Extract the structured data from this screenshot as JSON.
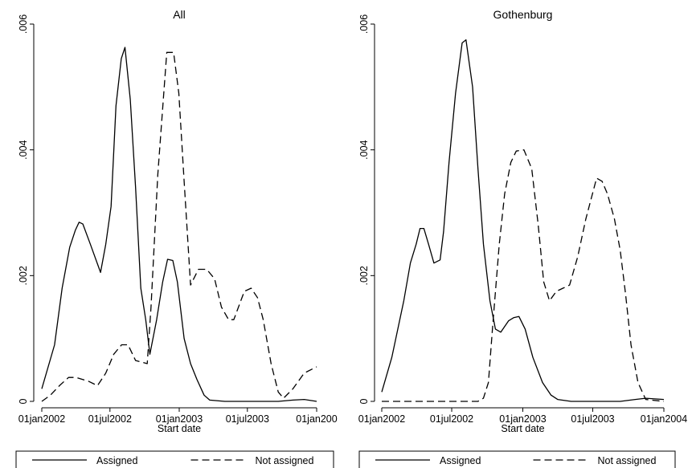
{
  "chart_data": [
    {
      "type": "line",
      "title": "All",
      "xlabel": "Start date",
      "ylabel": "",
      "xlim": [
        "2002-01-01",
        "2004-01-01"
      ],
      "ylim": [
        0,
        0.006
      ],
      "x_ticks": [
        "2002-01-01",
        "2002-07-01",
        "2003-01-01",
        "2003-07-01",
        "2004-01-01"
      ],
      "x_tick_labels": [
        "01jan2002",
        "01jul2002",
        "01jan2003",
        "01jul2003",
        "01jan200"
      ],
      "y_ticks": [
        0,
        0.002,
        0.004,
        0.006
      ],
      "y_tick_labels": [
        "0",
        ".002",
        ".004",
        ".006"
      ],
      "grid": false,
      "legend": "bottom",
      "series": [
        {
          "name": "Assigned",
          "style": "solid",
          "points": [
            [
              "2002-01-01",
              0.0002
            ],
            [
              "2002-02-04",
              0.0009
            ],
            [
              "2002-02-24",
              0.0018
            ],
            [
              "2002-03-16",
              0.00245
            ],
            [
              "2002-03-31",
              0.00272
            ],
            [
              "2002-04-10",
              0.00285
            ],
            [
              "2002-04-20",
              0.00282
            ],
            [
              "2002-05-10",
              0.0025
            ],
            [
              "2002-06-06",
              0.00205
            ],
            [
              "2002-06-20",
              0.0025
            ],
            [
              "2002-07-04",
              0.0031
            ],
            [
              "2002-07-17",
              0.0047
            ],
            [
              "2002-07-31",
              0.00545
            ],
            [
              "2002-08-10",
              0.00563
            ],
            [
              "2002-08-24",
              0.0048
            ],
            [
              "2002-09-07",
              0.0034
            ],
            [
              "2002-09-21",
              0.0018
            ],
            [
              "2002-10-04",
              0.0013
            ],
            [
              "2002-10-15",
              0.00075
            ],
            [
              "2002-11-02",
              0.0013
            ],
            [
              "2002-11-18",
              0.0019
            ],
            [
              "2002-12-01",
              0.00226
            ],
            [
              "2002-12-15",
              0.00224
            ],
            [
              "2002-12-27",
              0.0019
            ],
            [
              "2003-01-14",
              0.001
            ],
            [
              "2003-01-31",
              0.0006
            ],
            [
              "2003-02-17",
              0.00035
            ],
            [
              "2003-03-08",
              0.0001
            ],
            [
              "2003-03-23",
              2e-05
            ],
            [
              "2003-05-02",
              0.0
            ],
            [
              "2003-09-21",
              0.0
            ],
            [
              "2003-10-30",
              2e-05
            ],
            [
              "2003-11-29",
              3e-05
            ],
            [
              "2004-01-01",
              0.0
            ]
          ]
        },
        {
          "name": "Not assigned",
          "style": "dashed",
          "points": [
            [
              "2002-01-01",
              0.0
            ],
            [
              "2002-01-24",
              0.0001
            ],
            [
              "2002-02-17",
              0.00025
            ],
            [
              "2002-03-13",
              0.00038
            ],
            [
              "2002-04-02",
              0.00038
            ],
            [
              "2002-05-05",
              0.00032
            ],
            [
              "2002-05-29",
              0.00025
            ],
            [
              "2002-06-20",
              0.00045
            ],
            [
              "2002-07-11",
              0.00075
            ],
            [
              "2002-08-01",
              0.0009
            ],
            [
              "2002-08-18",
              0.0009
            ],
            [
              "2002-09-07",
              0.00065
            ],
            [
              "2002-10-08",
              0.0006
            ],
            [
              "2002-10-18",
              0.0015
            ],
            [
              "2002-11-05",
              0.0036
            ],
            [
              "2002-11-29",
              0.00555
            ],
            [
              "2002-12-17",
              0.00555
            ],
            [
              "2002-12-31",
              0.0049
            ],
            [
              "2003-01-14",
              0.0035
            ],
            [
              "2003-01-31",
              0.00185
            ],
            [
              "2003-02-21",
              0.0021
            ],
            [
              "2003-03-15",
              0.0021
            ],
            [
              "2003-04-05",
              0.00195
            ],
            [
              "2003-04-23",
              0.0015
            ],
            [
              "2003-05-12",
              0.0013
            ],
            [
              "2003-05-26",
              0.0013
            ],
            [
              "2003-06-23",
              0.00175
            ],
            [
              "2003-07-11",
              0.0018
            ],
            [
              "2003-07-28",
              0.00165
            ],
            [
              "2003-08-12",
              0.0013
            ],
            [
              "2003-09-02",
              0.0006
            ],
            [
              "2003-09-21",
              0.00015
            ],
            [
              "2003-10-05",
              5e-05
            ],
            [
              "2003-10-30",
              0.0002
            ],
            [
              "2003-11-29",
              0.00045
            ],
            [
              "2004-01-01",
              0.00055
            ]
          ]
        }
      ]
    },
    {
      "type": "line",
      "title": "Gothenburg",
      "xlabel": "Start date",
      "ylabel": "",
      "xlim": [
        "2002-01-01",
        "2004-01-01"
      ],
      "ylim": [
        0,
        0.006
      ],
      "x_ticks": [
        "2002-01-01",
        "2002-07-01",
        "2003-01-01",
        "2003-07-01",
        "2004-01-01"
      ],
      "x_tick_labels": [
        "01jan2002",
        "01jul2002",
        "01jan2003",
        "01jul2003",
        "01jan2004"
      ],
      "y_ticks": [
        0,
        0.002,
        0.004,
        0.006
      ],
      "y_tick_labels": [
        "0",
        ".002",
        ".004",
        ".006"
      ],
      "grid": false,
      "legend": "bottom",
      "series": [
        {
          "name": "Assigned",
          "style": "solid",
          "points": [
            [
              "2002-01-01",
              0.00015
            ],
            [
              "2002-01-27",
              0.0007
            ],
            [
              "2002-02-27",
              0.0016
            ],
            [
              "2002-03-16",
              0.0022
            ],
            [
              "2002-03-31",
              0.0025
            ],
            [
              "2002-04-10",
              0.00275
            ],
            [
              "2002-04-20",
              0.00275
            ],
            [
              "2002-05-02",
              0.0025
            ],
            [
              "2002-05-16",
              0.0022
            ],
            [
              "2002-06-01",
              0.00225
            ],
            [
              "2002-06-10",
              0.0027
            ],
            [
              "2002-06-24",
              0.0038
            ],
            [
              "2002-07-11",
              0.0049
            ],
            [
              "2002-07-28",
              0.0057
            ],
            [
              "2002-08-07",
              0.00575
            ],
            [
              "2002-08-24",
              0.005
            ],
            [
              "2002-09-07",
              0.0037
            ],
            [
              "2002-09-21",
              0.0025
            ],
            [
              "2002-10-08",
              0.0016
            ],
            [
              "2002-10-22",
              0.00115
            ],
            [
              "2002-11-05",
              0.0011
            ],
            [
              "2002-11-25",
              0.00128
            ],
            [
              "2002-12-08",
              0.00133
            ],
            [
              "2002-12-22",
              0.00135
            ],
            [
              "2003-01-07",
              0.00115
            ],
            [
              "2003-01-27",
              0.0007
            ],
            [
              "2003-02-21",
              0.0003
            ],
            [
              "2003-03-15",
              0.0001
            ],
            [
              "2003-04-01",
              3e-05
            ],
            [
              "2003-05-06",
              0.0
            ],
            [
              "2003-09-10",
              0.0
            ],
            [
              "2003-10-19",
              3e-05
            ],
            [
              "2003-11-15",
              5e-05
            ],
            [
              "2004-01-01",
              3e-05
            ]
          ]
        },
        {
          "name": "Not assigned",
          "style": "dashed",
          "points": [
            [
              "2002-01-01",
              0.0
            ],
            [
              "2002-09-07",
              0.0
            ],
            [
              "2002-09-21",
              5e-05
            ],
            [
              "2002-10-04",
              0.0003
            ],
            [
              "2002-10-15",
              0.0012
            ],
            [
              "2002-11-01",
              0.0025
            ],
            [
              "2002-11-15",
              0.0033
            ],
            [
              "2002-12-01",
              0.0038
            ],
            [
              "2002-12-15",
              0.00398
            ],
            [
              "2003-01-04",
              0.004
            ],
            [
              "2003-01-24",
              0.0037
            ],
            [
              "2003-02-10",
              0.0028
            ],
            [
              "2003-02-24",
              0.0019
            ],
            [
              "2003-03-11",
              0.0016
            ],
            [
              "2003-03-29",
              0.00175
            ],
            [
              "2003-04-15",
              0.0018
            ],
            [
              "2003-05-02",
              0.00185
            ],
            [
              "2003-05-23",
              0.0023
            ],
            [
              "2003-06-13",
              0.0029
            ],
            [
              "2003-07-11",
              0.00355
            ],
            [
              "2003-07-25",
              0.0035
            ],
            [
              "2003-08-08",
              0.0033
            ],
            [
              "2003-08-26",
              0.0029
            ],
            [
              "2003-09-10",
              0.0024
            ],
            [
              "2003-09-24",
              0.0017
            ],
            [
              "2003-10-08",
              0.0009
            ],
            [
              "2003-10-26",
              0.0003
            ],
            [
              "2003-11-15",
              3e-05
            ],
            [
              "2004-01-01",
              0.0
            ]
          ]
        }
      ]
    }
  ]
}
